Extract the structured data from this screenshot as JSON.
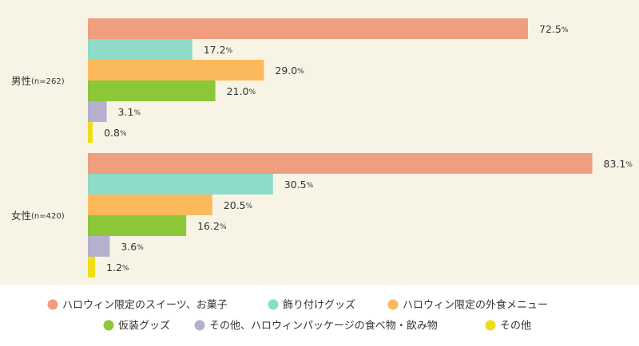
{
  "chart_data": {
    "type": "bar",
    "orientation": "horizontal",
    "unit": "%",
    "groups": [
      {
        "label": "男性",
        "n_label": "(n=262)"
      },
      {
        "label": "女性",
        "n_label": "(n=420)"
      }
    ],
    "series": [
      {
        "name": "ハロウィン限定のスイーツ、お菓子",
        "color": "#f09e80",
        "values": [
          72.5,
          83.1
        ]
      },
      {
        "name": "飾り付けグッズ",
        "color": "#8ddbc9",
        "values": [
          17.2,
          30.5
        ]
      },
      {
        "name": "ハロウィン限定の外食メニュー",
        "color": "#fcb95c",
        "values": [
          29.0,
          20.5
        ]
      },
      {
        "name": "仮装グッズ",
        "color": "#8cc739",
        "values": [
          21.0,
          16.2
        ]
      },
      {
        "name": "その他、ハロウィンパッケージの食べ物・飲み物",
        "color": "#b6b0cf",
        "values": [
          3.1,
          3.6
        ]
      },
      {
        "name": "その他",
        "color": "#f0dc1a",
        "values": [
          0.8,
          1.2
        ]
      }
    ],
    "xlim": [
      0,
      100
    ],
    "grid": false,
    "legend_position": "bottom"
  }
}
